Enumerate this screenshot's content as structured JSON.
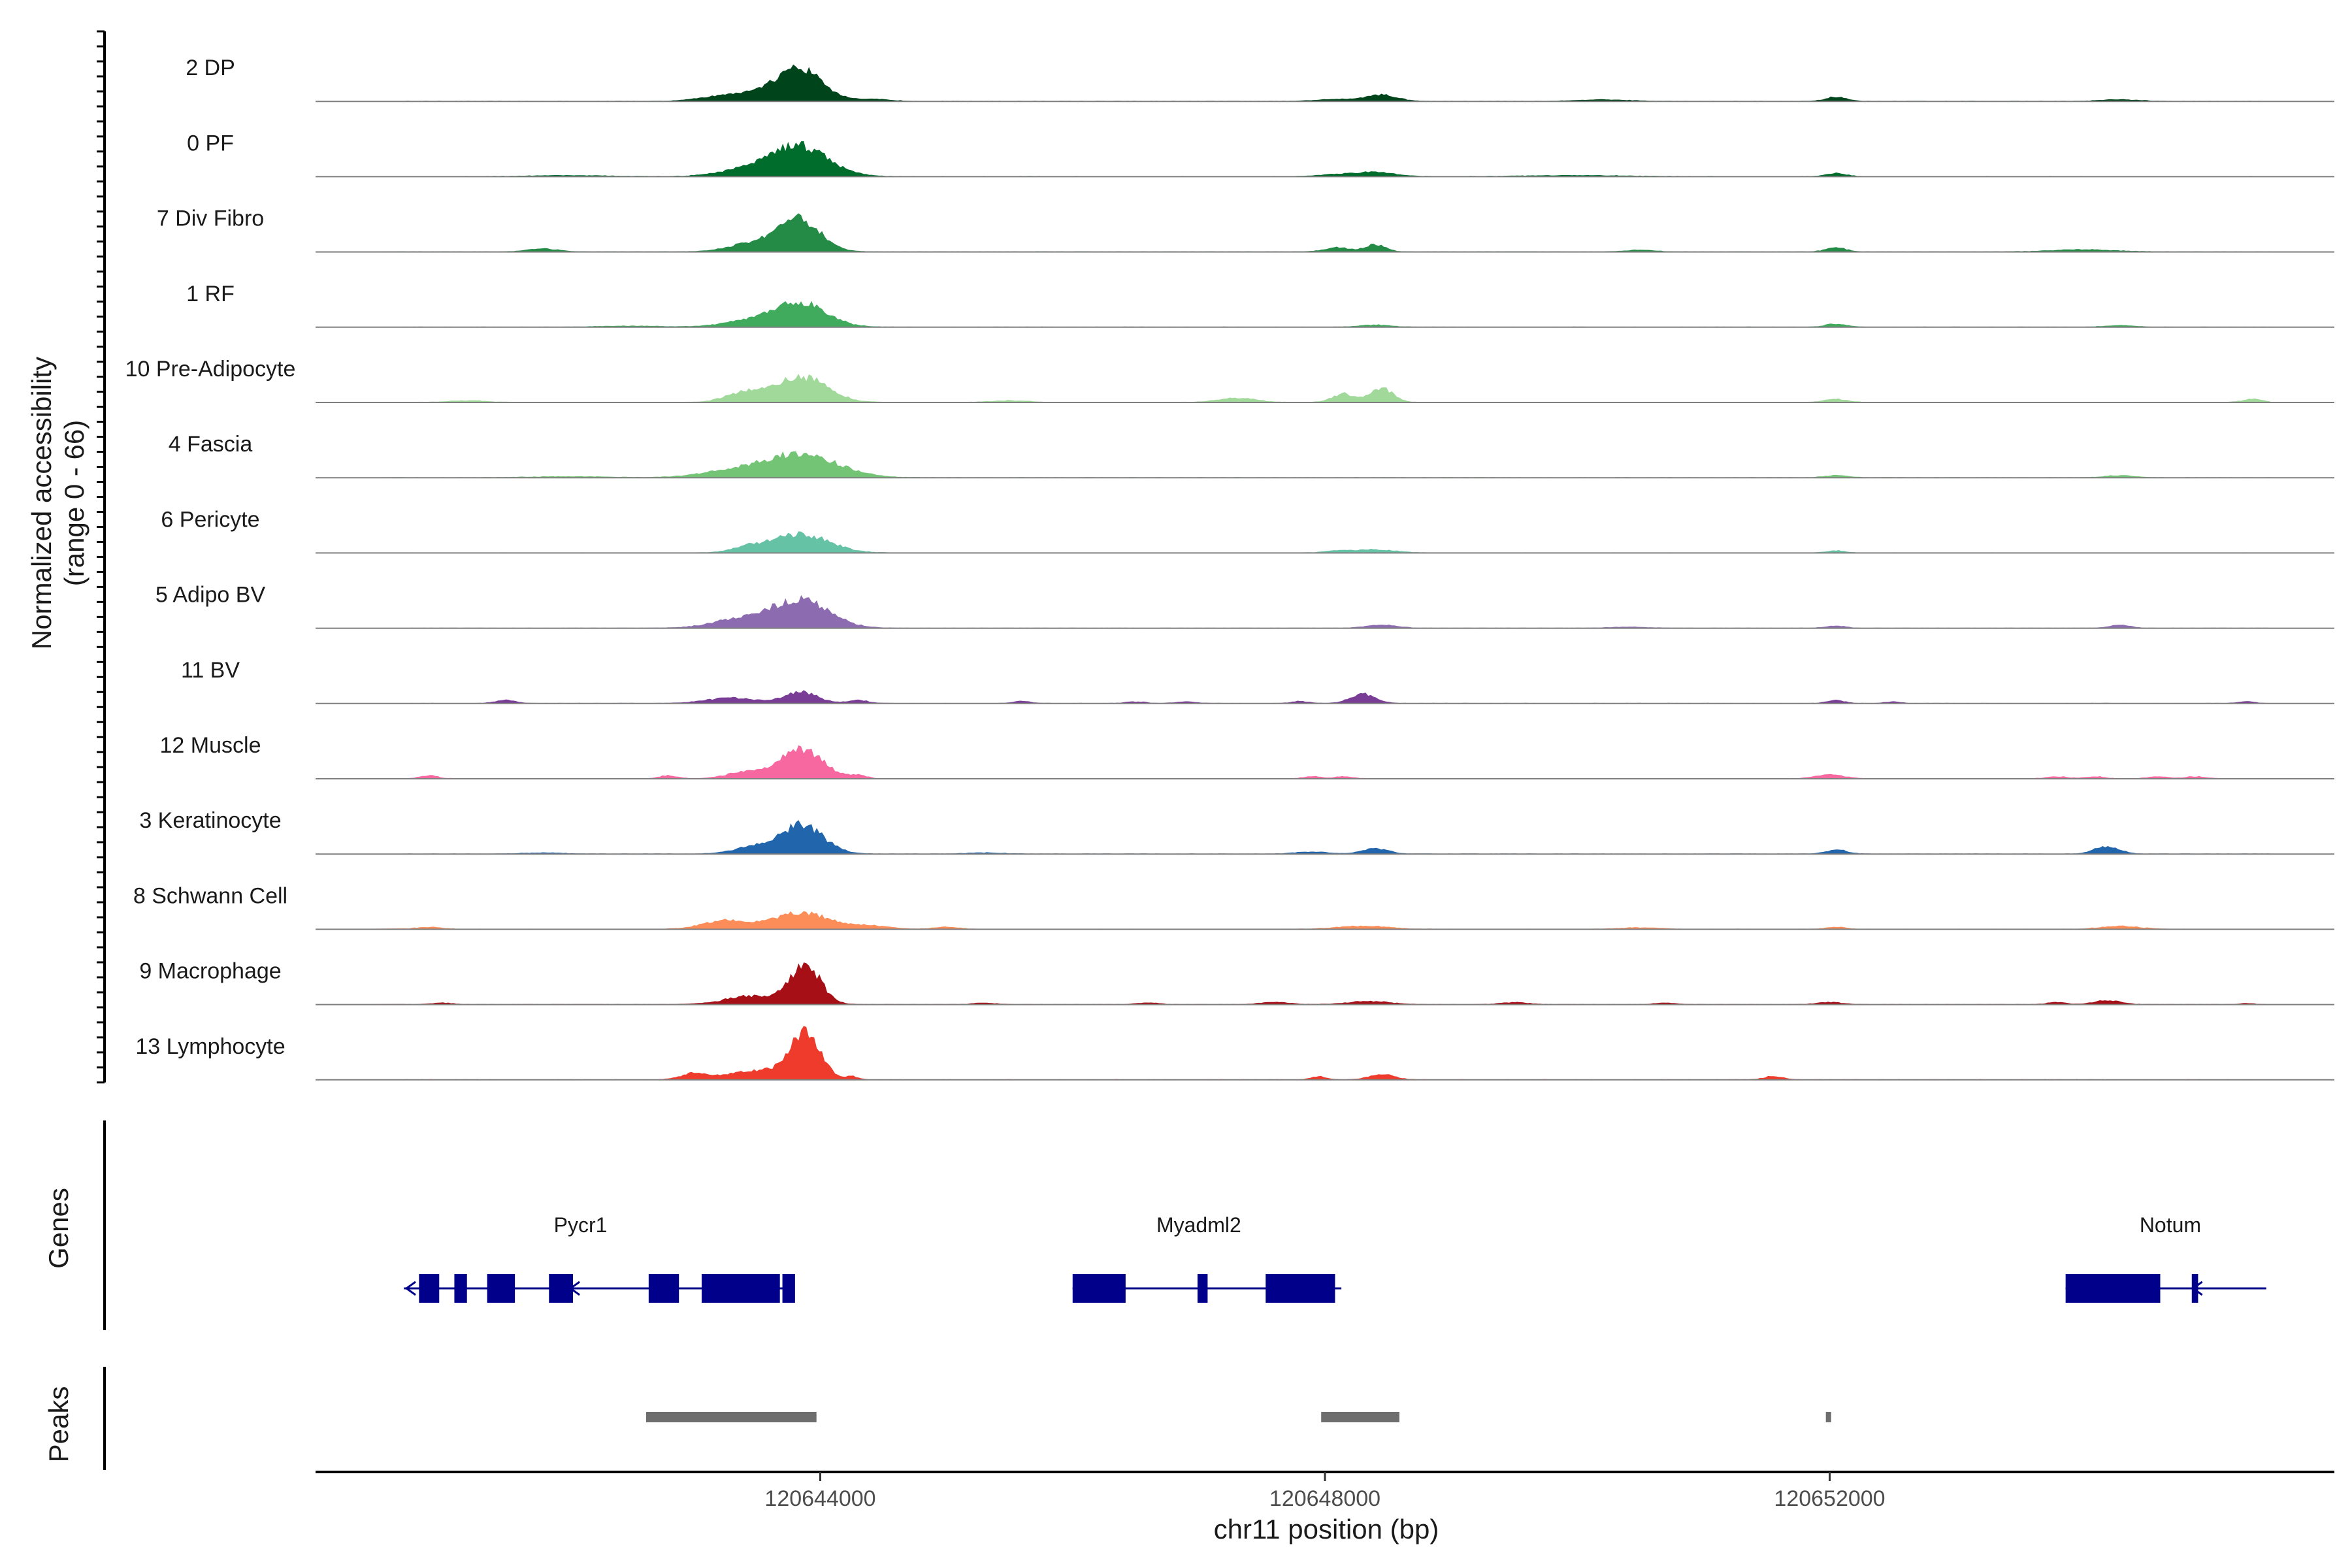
{
  "chart_data": {
    "type": "area",
    "title": "",
    "ylabel": "Normalized accessibility",
    "ylabel_range": "(range 0 - 66)",
    "xlabel": "chr11 position (bp)",
    "y_range": [
      0,
      66
    ],
    "x_range": [
      120640000,
      120656000
    ],
    "x_ticks": [
      120644000,
      120648000,
      120652000
    ],
    "x_tick_labels": [
      "120644000",
      "120648000",
      "120652000"
    ],
    "series": [
      {
        "name": "2 DP",
        "color": "#00441b",
        "peaks": [
          [
            120643850,
            28,
            170
          ],
          [
            120643600,
            9,
            220
          ],
          [
            120643200,
            4,
            180
          ],
          [
            120648450,
            6,
            120
          ],
          [
            120648100,
            2,
            160
          ],
          [
            120652050,
            4,
            80
          ],
          [
            120644400,
            2,
            150
          ],
          [
            120650200,
            1.5,
            200
          ],
          [
            120654300,
            1.5,
            150
          ]
        ]
      },
      {
        "name": "0 PF",
        "color": "#006d2c",
        "peaks": [
          [
            120643850,
            27,
            220
          ],
          [
            120643500,
            8,
            250
          ],
          [
            120648400,
            4,
            150
          ],
          [
            120648100,
            2,
            150
          ],
          [
            120652050,
            3,
            80
          ],
          [
            120642000,
            1,
            300
          ],
          [
            120650000,
            1,
            400
          ]
        ]
      },
      {
        "name": "7 Div Fibro",
        "color": "#238b45",
        "peaks": [
          [
            120643850,
            30,
            160
          ],
          [
            120643500,
            9,
            200
          ],
          [
            120648400,
            7,
            80
          ],
          [
            120648100,
            4,
            100
          ],
          [
            120652050,
            4,
            80
          ],
          [
            120641800,
            3,
            120
          ],
          [
            120654000,
            2,
            250
          ],
          [
            120650500,
            1.5,
            120
          ]
        ]
      },
      {
        "name": "1 RF",
        "color": "#41ab5d",
        "peaks": [
          [
            120643850,
            23,
            200
          ],
          [
            120643450,
            6,
            220
          ],
          [
            120652050,
            3,
            80
          ],
          [
            120648400,
            2,
            120
          ],
          [
            120654300,
            1.5,
            120
          ],
          [
            120642500,
            1,
            250
          ]
        ]
      },
      {
        "name": "10 Pre-Adipocyte",
        "color": "#a1d99b",
        "peaks": [
          [
            120643850,
            25,
            200
          ],
          [
            120643400,
            9,
            150
          ],
          [
            120648450,
            13,
            90
          ],
          [
            120648150,
            8,
            90
          ],
          [
            120647300,
            4,
            150
          ],
          [
            120652050,
            3,
            90
          ],
          [
            120655350,
            3,
            80
          ],
          [
            120645500,
            1.5,
            150
          ],
          [
            120641200,
            1.5,
            150
          ]
        ]
      },
      {
        "name": "4 Fascia",
        "color": "#74c476",
        "peaks": [
          [
            120643850,
            23,
            280
          ],
          [
            120643300,
            6,
            250
          ],
          [
            120652050,
            2,
            90
          ],
          [
            120654300,
            2,
            120
          ],
          [
            120642000,
            1,
            300
          ]
        ]
      },
      {
        "name": "6 Pericyte",
        "color": "#66c2a5",
        "peaks": [
          [
            120643850,
            18,
            220
          ],
          [
            120643450,
            5,
            150
          ],
          [
            120648400,
            3,
            150
          ],
          [
            120648100,
            2,
            100
          ],
          [
            120652050,
            2,
            70
          ]
        ]
      },
      {
        "name": "5 Adipo BV",
        "color": "#8c6bb1",
        "peaks": [
          [
            120643850,
            28,
            220
          ],
          [
            120643350,
            8,
            220
          ],
          [
            120648450,
            3,
            120
          ],
          [
            120652050,
            2,
            80
          ],
          [
            120654300,
            3,
            80
          ],
          [
            120650400,
            1,
            150
          ]
        ]
      },
      {
        "name": "11 BV",
        "color": "#7a3d96",
        "peaks": [
          [
            120643850,
            11,
            130
          ],
          [
            120643300,
            5,
            200
          ],
          [
            120648300,
            9,
            100
          ],
          [
            120641500,
            3,
            80
          ],
          [
            120644300,
            3,
            80
          ],
          [
            120652050,
            3,
            70
          ],
          [
            120647800,
            2,
            70
          ],
          [
            120645600,
            2,
            70
          ],
          [
            120655300,
            2,
            60
          ],
          [
            120646500,
            1.5,
            80
          ],
          [
            120646900,
            1.5,
            80
          ],
          [
            120652500,
            1.5,
            60
          ]
        ]
      },
      {
        "name": "12 Muscle",
        "color": "#f768a1",
        "peaks": [
          [
            120643850,
            28,
            170
          ],
          [
            120643400,
            6,
            150
          ],
          [
            120644300,
            3,
            70
          ],
          [
            120652000,
            4,
            110
          ],
          [
            120640900,
            3,
            70
          ],
          [
            120642800,
            3,
            70
          ],
          [
            120647900,
            2,
            70
          ],
          [
            120648150,
            2,
            70
          ],
          [
            120653800,
            2,
            80
          ],
          [
            120654100,
            2,
            80
          ],
          [
            120654600,
            2,
            80
          ],
          [
            120654900,
            2,
            80
          ]
        ]
      },
      {
        "name": "3 Keratinocyte",
        "color": "#2166ac",
        "peaks": [
          [
            120643850,
            28,
            170
          ],
          [
            120643450,
            6,
            150
          ],
          [
            120648400,
            5,
            100
          ],
          [
            120654200,
            7,
            100
          ],
          [
            120652050,
            4,
            80
          ],
          [
            120647900,
            2,
            130
          ],
          [
            120641800,
            1,
            150
          ],
          [
            120645300,
            1,
            150
          ]
        ]
      },
      {
        "name": "8 Schwann Cell",
        "color": "#fc8d59",
        "peaks": [
          [
            120643850,
            16,
            220
          ],
          [
            120643250,
            8,
            180
          ],
          [
            120644400,
            3,
            150
          ],
          [
            120648300,
            3,
            200
          ],
          [
            120654300,
            3,
            150
          ],
          [
            120640900,
            2,
            100
          ],
          [
            120645000,
            2,
            100
          ],
          [
            120652050,
            2,
            80
          ],
          [
            120650500,
            1.5,
            150
          ]
        ]
      },
      {
        "name": "9 Macrophage",
        "color": "#a50f15",
        "peaks": [
          [
            120643880,
            38,
            120
          ],
          [
            120643450,
            8,
            200
          ],
          [
            120654200,
            4,
            100
          ],
          [
            120648350,
            3,
            160
          ],
          [
            120647600,
            2,
            120
          ],
          [
            120649500,
            2,
            100
          ],
          [
            120652000,
            2,
            100
          ],
          [
            120653800,
            2,
            80
          ],
          [
            120641000,
            1.5,
            80
          ],
          [
            120645300,
            1.5,
            80
          ],
          [
            120646600,
            1.5,
            80
          ],
          [
            120650700,
            1.5,
            80
          ],
          [
            120655300,
            1,
            60
          ]
        ]
      },
      {
        "name": "13 Lymphocyte",
        "color": "#ef3b2c",
        "peaks": [
          [
            120643880,
            44,
            120
          ],
          [
            120643500,
            9,
            220
          ],
          [
            120643000,
            6,
            100
          ],
          [
            120648450,
            5,
            100
          ],
          [
            120647950,
            3,
            60
          ],
          [
            120651550,
            3,
            80
          ],
          [
            120644250,
            3,
            50
          ]
        ]
      }
    ],
    "genes": [
      {
        "name": "Pycr1",
        "strand": "-",
        "start": 120640700,
        "end": 120643780,
        "label_pos": 120642100,
        "exons": [
          [
            120640820,
            120640980
          ],
          [
            120641100,
            120641200
          ],
          [
            120641360,
            120641580
          ],
          [
            120641850,
            120642040
          ],
          [
            120642640,
            120642880
          ],
          [
            120643060,
            120643680
          ],
          [
            120643700,
            120643800
          ]
        ]
      },
      {
        "name": "Myadml2",
        "strand": "+",
        "start": 120646000,
        "end": 120648130,
        "label_pos": 120647000,
        "exons": [
          [
            120646000,
            120646420
          ],
          [
            120646990,
            120647070
          ],
          [
            120647530,
            120648080
          ]
        ]
      },
      {
        "name": "Notum",
        "strand": "-",
        "start": 120653870,
        "end": 120655280,
        "label_pos": 120654700,
        "exons": [
          [
            120653870,
            120654620
          ],
          [
            120654870,
            120654920
          ]
        ]
      }
    ],
    "peaks": [
      [
        120642620,
        120643970
      ],
      [
        120647970,
        120648590
      ],
      [
        120651970,
        120652010
      ]
    ],
    "panel_titles": {
      "genes": "Genes",
      "peaks": "Peaks"
    },
    "grid": false
  }
}
